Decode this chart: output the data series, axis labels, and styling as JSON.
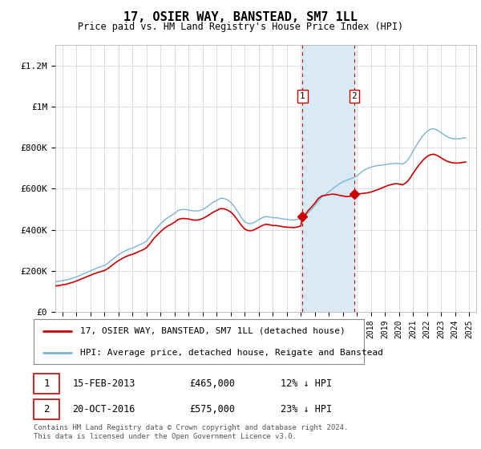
{
  "title": "17, OSIER WAY, BANSTEAD, SM7 1LL",
  "subtitle": "Price paid vs. HM Land Registry's House Price Index (HPI)",
  "xlim_start": 1995.5,
  "xlim_end": 2025.5,
  "ylim_bottom": 0,
  "ylim_top": 1300000,
  "yticks": [
    0,
    200000,
    400000,
    600000,
    800000,
    1000000,
    1200000
  ],
  "ytick_labels": [
    "£0",
    "£200K",
    "£400K",
    "£600K",
    "£800K",
    "£1M",
    "£1.2M"
  ],
  "transaction1_date": 2013.12,
  "transaction1_price": 465000,
  "transaction1_label": "1",
  "transaction1_text": "15-FEB-2013",
  "transaction1_amount": "£465,000",
  "transaction1_hpi": "12% ↓ HPI",
  "transaction2_date": 2016.8,
  "transaction2_price": 575000,
  "transaction2_label": "2",
  "transaction2_text": "20-OCT-2016",
  "transaction2_amount": "£575,000",
  "transaction2_hpi": "23% ↓ HPI",
  "shaded_start": 2013.12,
  "shaded_end": 2016.8,
  "hpi_color": "#7ab4d8",
  "price_color": "#cc0000",
  "shade_color": "#daeaf5",
  "legend_line1": "17, OSIER WAY, BANSTEAD, SM7 1LL (detached house)",
  "legend_line2": "HPI: Average price, detached house, Reigate and Banstead",
  "footer": "Contains HM Land Registry data © Crown copyright and database right 2024.\nThis data is licensed under the Open Government Licence v3.0.",
  "hpi_data_x": [
    1995.5,
    1995.75,
    1996.0,
    1996.25,
    1996.5,
    1996.75,
    1997.0,
    1997.25,
    1997.5,
    1997.75,
    1998.0,
    1998.25,
    1998.5,
    1998.75,
    1999.0,
    1999.25,
    1999.5,
    1999.75,
    2000.0,
    2000.25,
    2000.5,
    2000.75,
    2001.0,
    2001.25,
    2001.5,
    2001.75,
    2002.0,
    2002.25,
    2002.5,
    2002.75,
    2003.0,
    2003.25,
    2003.5,
    2003.75,
    2004.0,
    2004.25,
    2004.5,
    2004.75,
    2005.0,
    2005.25,
    2005.5,
    2005.75,
    2006.0,
    2006.25,
    2006.5,
    2006.75,
    2007.0,
    2007.25,
    2007.5,
    2007.75,
    2008.0,
    2008.25,
    2008.5,
    2008.75,
    2009.0,
    2009.25,
    2009.5,
    2009.75,
    2010.0,
    2010.25,
    2010.5,
    2010.75,
    2011.0,
    2011.25,
    2011.5,
    2011.75,
    2012.0,
    2012.25,
    2012.5,
    2012.75,
    2013.0,
    2013.25,
    2013.5,
    2013.75,
    2014.0,
    2014.25,
    2014.5,
    2014.75,
    2015.0,
    2015.25,
    2015.5,
    2015.75,
    2016.0,
    2016.25,
    2016.5,
    2016.75,
    2017.0,
    2017.25,
    2017.5,
    2017.75,
    2018.0,
    2018.25,
    2018.5,
    2018.75,
    2019.0,
    2019.25,
    2019.5,
    2019.75,
    2020.0,
    2020.25,
    2020.5,
    2020.75,
    2021.0,
    2021.25,
    2021.5,
    2021.75,
    2022.0,
    2022.25,
    2022.5,
    2022.75,
    2023.0,
    2023.25,
    2023.5,
    2023.75,
    2024.0,
    2024.25,
    2024.5,
    2024.75
  ],
  "hpi_data_y": [
    148000,
    150000,
    153000,
    156000,
    160000,
    165000,
    171000,
    178000,
    186000,
    193000,
    200000,
    208000,
    215000,
    221000,
    227000,
    238000,
    252000,
    266000,
    279000,
    289000,
    298000,
    306000,
    311000,
    319000,
    328000,
    335000,
    345000,
    367000,
    391000,
    411000,
    429000,
    446000,
    459000,
    469000,
    480000,
    494000,
    499000,
    499000,
    497000,
    493000,
    492000,
    493000,
    499000,
    509000,
    522000,
    534000,
    543000,
    553000,
    553000,
    547000,
    534000,
    515000,
    488000,
    461000,
    440000,
    431000,
    431000,
    439000,
    449000,
    459000,
    465000,
    463000,
    459000,
    459000,
    456000,
    453000,
    451000,
    449000,
    448000,
    451000,
    456000,
    466000,
    482000,
    499000,
    519000,
    541000,
    560000,
    572000,
    585000,
    599000,
    612000,
    624000,
    634000,
    641000,
    648000,
    654000,
    663000,
    677000,
    690000,
    699000,
    705000,
    710000,
    713000,
    715000,
    717000,
    720000,
    722000,
    724000,
    722000,
    720000,
    730000,
    752000,
    783000,
    812000,
    839000,
    862000,
    880000,
    890000,
    892000,
    885000,
    873000,
    861000,
    851000,
    845000,
    843000,
    843000,
    846000,
    848000
  ],
  "price_data_x": [
    1995.5,
    1995.75,
    1996.0,
    1996.25,
    1996.5,
    1996.75,
    1997.0,
    1997.25,
    1997.5,
    1997.75,
    1998.0,
    1998.25,
    1998.5,
    1998.75,
    1999.0,
    1999.25,
    1999.5,
    1999.75,
    2000.0,
    2000.25,
    2000.5,
    2000.75,
    2001.0,
    2001.25,
    2001.5,
    2001.75,
    2002.0,
    2002.25,
    2002.5,
    2002.75,
    2003.0,
    2003.25,
    2003.5,
    2003.75,
    2004.0,
    2004.25,
    2004.5,
    2004.75,
    2005.0,
    2005.25,
    2005.5,
    2005.75,
    2006.0,
    2006.25,
    2006.5,
    2006.75,
    2007.0,
    2007.25,
    2007.5,
    2007.75,
    2008.0,
    2008.25,
    2008.5,
    2008.75,
    2009.0,
    2009.25,
    2009.5,
    2009.75,
    2010.0,
    2010.25,
    2010.5,
    2010.75,
    2011.0,
    2011.25,
    2011.5,
    2011.75,
    2012.0,
    2012.25,
    2012.5,
    2012.75,
    2013.0,
    2013.12,
    2013.25,
    2013.5,
    2013.75,
    2014.0,
    2014.25,
    2014.5,
    2014.75,
    2015.0,
    2015.25,
    2015.5,
    2015.75,
    2016.0,
    2016.25,
    2016.5,
    2016.75,
    2016.8,
    2017.0,
    2017.25,
    2017.5,
    2017.75,
    2018.0,
    2018.25,
    2018.5,
    2018.75,
    2019.0,
    2019.25,
    2019.5,
    2019.75,
    2020.0,
    2020.25,
    2020.5,
    2020.75,
    2021.0,
    2021.25,
    2021.5,
    2021.75,
    2022.0,
    2022.25,
    2022.5,
    2022.75,
    2023.0,
    2023.25,
    2023.5,
    2023.75,
    2024.0,
    2024.25,
    2024.5,
    2024.75
  ],
  "price_data_y": [
    127000,
    129000,
    132000,
    135000,
    140000,
    145000,
    151000,
    158000,
    165000,
    172000,
    179000,
    186000,
    192000,
    197000,
    202000,
    212000,
    225000,
    238000,
    250000,
    260000,
    269000,
    276000,
    281000,
    288000,
    296000,
    303000,
    313000,
    333000,
    356000,
    374000,
    391000,
    406000,
    418000,
    427000,
    437000,
    450000,
    455000,
    455000,
    453000,
    449000,
    447000,
    449000,
    455000,
    464000,
    475000,
    486000,
    494000,
    503000,
    503000,
    497000,
    487000,
    470000,
    447000,
    423000,
    404000,
    396000,
    396000,
    403000,
    412000,
    421000,
    427000,
    425000,
    421000,
    421000,
    418000,
    415000,
    413000,
    412000,
    411000,
    414000,
    419000,
    465000,
    465000,
    492000,
    510000,
    530000,
    553000,
    565000,
    568000,
    571000,
    574000,
    572000,
    568000,
    565000,
    562000,
    563000,
    567000,
    575000,
    575000,
    576000,
    578000,
    580000,
    584000,
    590000,
    596000,
    603000,
    610000,
    617000,
    621000,
    625000,
    623000,
    619000,
    629000,
    648000,
    675000,
    700000,
    722000,
    742000,
    757000,
    766000,
    768000,
    761000,
    750000,
    740000,
    732000,
    727000,
    725000,
    725000,
    728000,
    730000
  ]
}
